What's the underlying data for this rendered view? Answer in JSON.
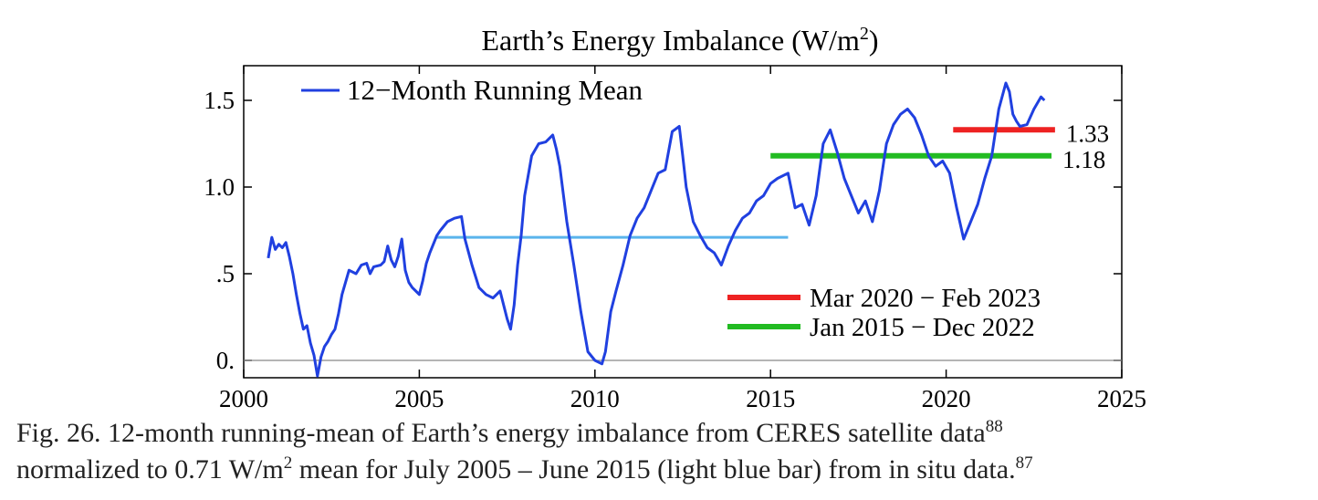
{
  "chart_data": {
    "type": "line",
    "title": "Earth’s Energy Imbalance (W/m2)",
    "title_main": "Earth’s Energy Imbalance (W/m",
    "title_sup": "2",
    "title_end": ")",
    "xlim": [
      2000,
      2025
    ],
    "ylim": [
      -0.1,
      1.7
    ],
    "x_ticks": [
      2000,
      2005,
      2010,
      2015,
      2020,
      2025
    ],
    "x_tick_labels": [
      "2000",
      "2005",
      "2010",
      "2015",
      "2020",
      "2025"
    ],
    "y_ticks": [
      0,
      0.5,
      1.0,
      1.5
    ],
    "y_tick_labels": [
      "0.",
      ".5",
      "1.0",
      "1.5"
    ],
    "grid": false,
    "zero_line": true,
    "legend_position": "top-left",
    "series": [
      {
        "name": "12−Month Running Mean",
        "color": "#2040e0",
        "x": [
          2000.7,
          2000.8,
          2000.9,
          2001.0,
          2001.1,
          2001.2,
          2001.3,
          2001.4,
          2001.5,
          2001.6,
          2001.7,
          2001.8,
          2001.9,
          2002.0,
          2002.1,
          2002.2,
          2002.3,
          2002.4,
          2002.5,
          2002.6,
          2002.7,
          2002.8,
          2003.0,
          2003.2,
          2003.35,
          2003.5,
          2003.6,
          2003.7,
          2003.9,
          2004.0,
          2004.1,
          2004.2,
          2004.3,
          2004.4,
          2004.5,
          2004.6,
          2004.7,
          2004.8,
          2004.9,
          2005.0,
          2005.1,
          2005.2,
          2005.3,
          2005.5,
          2005.6,
          2005.8,
          2006.0,
          2006.2,
          2006.3,
          2006.5,
          2006.7,
          2006.9,
          2007.1,
          2007.3,
          2007.5,
          2007.6,
          2007.7,
          2007.8,
          2007.9,
          2008.0,
          2008.2,
          2008.4,
          2008.6,
          2008.8,
          2008.9,
          2009.0,
          2009.2,
          2009.4,
          2009.6,
          2009.8,
          2010.0,
          2010.2,
          2010.3,
          2010.45,
          2010.6,
          2010.8,
          2011.0,
          2011.2,
          2011.4,
          2011.6,
          2011.8,
          2012.0,
          2012.2,
          2012.4,
          2012.5,
          2012.6,
          2012.8,
          2013.0,
          2013.2,
          2013.4,
          2013.6,
          2013.8,
          2014.0,
          2014.2,
          2014.4,
          2014.6,
          2014.8,
          2015.0,
          2015.2,
          2015.5,
          2015.7,
          2015.9,
          2016.1,
          2016.3,
          2016.5,
          2016.7,
          2016.9,
          2017.1,
          2017.3,
          2017.5,
          2017.7,
          2017.9,
          2018.1,
          2018.3,
          2018.5,
          2018.7,
          2018.9,
          2019.1,
          2019.3,
          2019.5,
          2019.7,
          2019.9,
          2020.1,
          2020.3,
          2020.5,
          2020.7,
          2020.9,
          2021.1,
          2021.3,
          2021.5,
          2021.7,
          2021.8,
          2021.9,
          2022.0,
          2022.1,
          2022.3,
          2022.5,
          2022.7,
          2022.8
        ],
        "y": [
          0.59,
          0.71,
          0.64,
          0.67,
          0.65,
          0.68,
          0.6,
          0.5,
          0.38,
          0.27,
          0.18,
          0.2,
          0.1,
          0.03,
          -0.09,
          0.02,
          0.08,
          0.11,
          0.15,
          0.18,
          0.27,
          0.38,
          0.52,
          0.5,
          0.55,
          0.56,
          0.5,
          0.54,
          0.55,
          0.57,
          0.66,
          0.58,
          0.54,
          0.6,
          0.7,
          0.52,
          0.45,
          0.42,
          0.4,
          0.38,
          0.46,
          0.56,
          0.62,
          0.72,
          0.75,
          0.8,
          0.82,
          0.83,
          0.7,
          0.55,
          0.42,
          0.38,
          0.36,
          0.4,
          0.24,
          0.18,
          0.32,
          0.55,
          0.72,
          0.95,
          1.18,
          1.25,
          1.26,
          1.3,
          1.22,
          1.12,
          0.8,
          0.55,
          0.28,
          0.05,
          0.0,
          -0.02,
          0.05,
          0.28,
          0.4,
          0.55,
          0.72,
          0.82,
          0.88,
          0.98,
          1.08,
          1.1,
          1.32,
          1.35,
          1.18,
          1.0,
          0.8,
          0.72,
          0.65,
          0.62,
          0.55,
          0.66,
          0.75,
          0.82,
          0.85,
          0.92,
          0.95,
          1.02,
          1.05,
          1.08,
          0.88,
          0.9,
          0.78,
          0.95,
          1.25,
          1.33,
          1.2,
          1.05,
          0.95,
          0.85,
          0.92,
          0.8,
          0.98,
          1.25,
          1.36,
          1.42,
          1.45,
          1.4,
          1.3,
          1.18,
          1.12,
          1.15,
          1.08,
          0.88,
          0.7,
          0.8,
          0.9,
          1.05,
          1.18,
          1.45,
          1.6,
          1.55,
          1.42,
          1.38,
          1.35,
          1.36,
          1.45,
          1.52,
          1.5
        ]
      }
    ],
    "reference_bars": [
      {
        "name": "light-blue-bar",
        "color": "#5ab4ec",
        "x_start": 2005.5,
        "x_end": 2015.5,
        "y": 0.71
      },
      {
        "name": "green-bar",
        "color": "#22bb22",
        "x_start": 2015.0,
        "x_end": 2023.0,
        "y": 1.18,
        "label": "1.18"
      },
      {
        "name": "red-bar",
        "color": "#ee2222",
        "x_start": 2020.2,
        "x_end": 2023.1,
        "y": 1.33,
        "label": "1.33"
      }
    ],
    "legend_entries": [
      {
        "label": "Mar 2020 − Feb 2023",
        "color": "#ee2222"
      },
      {
        "label": "Jan 2015 − Dec 2022",
        "color": "#22bb22"
      }
    ]
  },
  "caption": {
    "line1_text": "Fig. 26. 12-month running-mean of Earth’s energy imbalance from CERES satellite data",
    "line1_sup": "88",
    "line2_pre": "normalized to 0.71 W/m",
    "line2_sup": "2",
    "line2_post": " mean for July 2005 – June 2015 (light blue bar) from in situ data.",
    "line2_sup_end": "87"
  }
}
